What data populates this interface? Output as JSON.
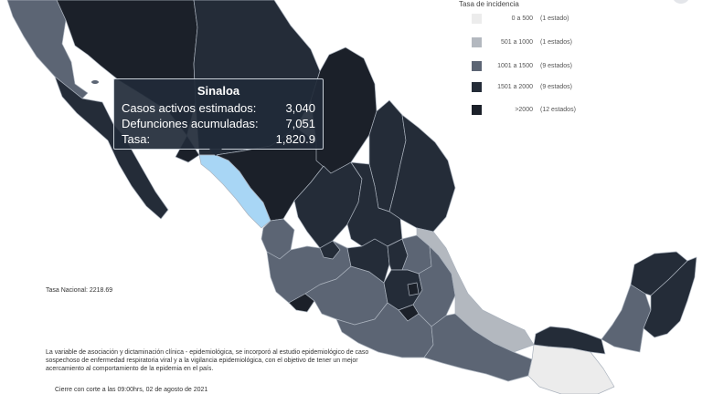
{
  "legend": {
    "title": "Tasa de incidencia",
    "items": [
      {
        "range": "0 a 500",
        "count": "(1 estado)",
        "color": "#ececec"
      },
      {
        "range": "501 a 1000",
        "count": "(1 estados)",
        "color": "#b3b8bf"
      },
      {
        "range": "1001 a 1500",
        "count": "(9 estados)",
        "color": "#5c6574"
      },
      {
        "range": "1501 a 2000",
        "count": "(9 estados)",
        "color": "#242c38"
      },
      {
        "range": ">2000",
        "count": "(12 estados)",
        "color": "#1b2029"
      }
    ]
  },
  "tooltip": {
    "state": "Sinaloa",
    "rows": [
      {
        "label": "Casos activos estimados:",
        "value": "3,040"
      },
      {
        "label": "Defunciones acumuladas:",
        "value": "7,051"
      },
      {
        "label": "Tasa:",
        "value": "1,820.9"
      }
    ]
  },
  "national_rate": "Tasa Nacional: 2218.69",
  "note": "La variable de asociación y dictaminación clínica - epidemiológica, se incorporó al estudio epidemiológico de caso sospechoso de enfermedad respiratoria viral y a la vigilancia epidemiológica, con el objetivo de tener un mejor acercamiento al comportamiento de la epidemia en el país.",
  "cutoff": "Cierre con corte a las 09:00hrs, 02 de agosto de 2021",
  "colors": {
    "highlight": "#a8d6f5",
    "border": "#aab2bd",
    "tooltip_bg": "#212a38"
  }
}
